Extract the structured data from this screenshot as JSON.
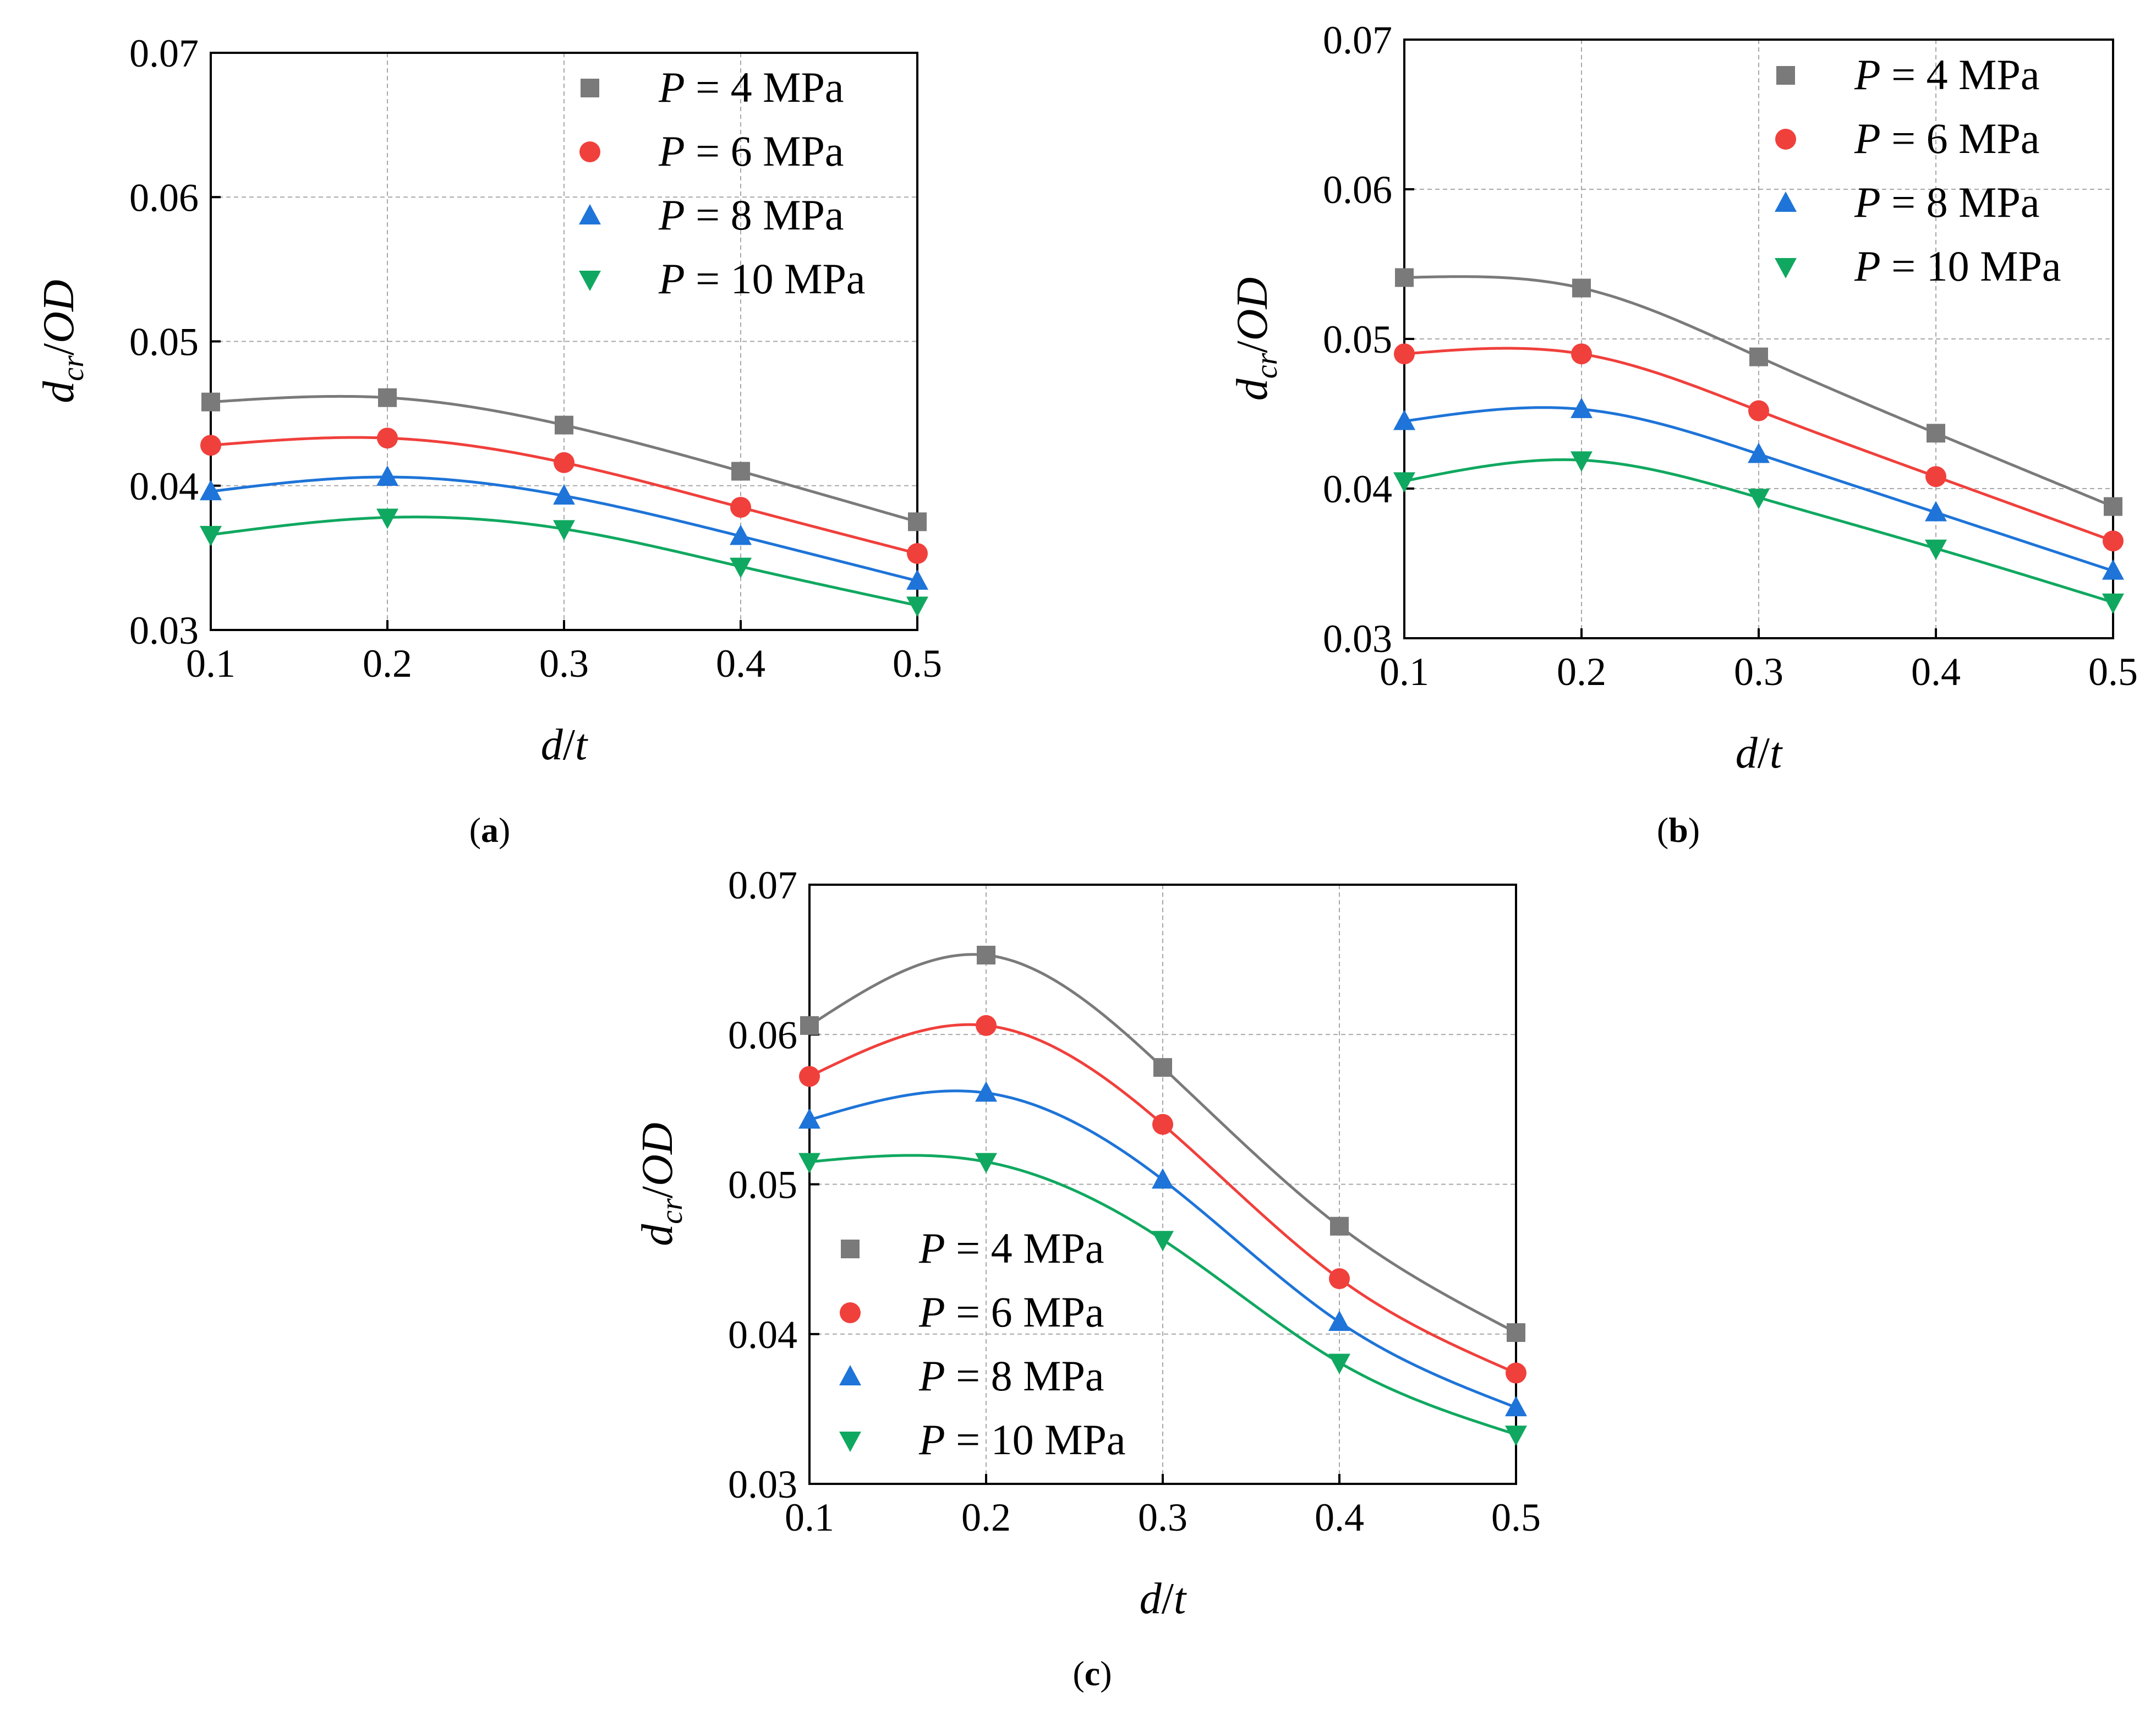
{
  "chart_data": [
    {
      "type": "line",
      "panel_label": "(a)",
      "xlabel": "d/t",
      "ylabel": "d_cr/OD",
      "xlim": [
        0.1,
        0.5
      ],
      "ylim": [
        0.03,
        0.07
      ],
      "xticks": [
        "0.1",
        "0.2",
        "0.3",
        "0.4",
        "0.5"
      ],
      "yticks": [
        "0.03",
        "0.04",
        "0.05",
        "0.06",
        "0.07"
      ],
      "grid": true,
      "legend_position": "top-right",
      "x": [
        0.1,
        0.2,
        0.3,
        0.4,
        0.5
      ],
      "series": [
        {
          "name": "P = 4 MPa",
          "var": "P",
          "rest": " = 4 MPa",
          "marker": "square",
          "color": "#7a7a7a",
          "values": [
            0.0458,
            0.0461,
            0.0442,
            0.041,
            0.0375
          ]
        },
        {
          "name": "P = 6 MPa",
          "var": "P",
          "rest": " = 6 MPa",
          "marker": "circle",
          "color": "#f0403c",
          "values": [
            0.0428,
            0.0433,
            0.0416,
            0.0385,
            0.0353
          ]
        },
        {
          "name": "P = 8 MPa",
          "var": "P",
          "rest": " = 8 MPa",
          "marker": "triangle-up",
          "color": "#1e74d8",
          "values": [
            0.0396,
            0.0406,
            0.0393,
            0.0365,
            0.0334
          ]
        },
        {
          "name": "P = 10 MPa",
          "var": "P",
          "rest": " = 10 MPa",
          "marker": "triangle-down",
          "color": "#10a860",
          "values": [
            0.0366,
            0.0378,
            0.037,
            0.0344,
            0.0317
          ]
        }
      ]
    },
    {
      "type": "line",
      "panel_label": "(b)",
      "xlabel": "d/t",
      "ylabel": "d_cr/OD",
      "xlim": [
        0.1,
        0.5
      ],
      "ylim": [
        0.03,
        0.07
      ],
      "xticks": [
        "0.1",
        "0.2",
        "0.3",
        "0.4",
        "0.5"
      ],
      "yticks": [
        "0.03",
        "0.04",
        "0.05",
        "0.06",
        "0.07"
      ],
      "grid": true,
      "legend_position": "top-right",
      "x": [
        0.1,
        0.2,
        0.3,
        0.4,
        0.5
      ],
      "series": [
        {
          "name": "P = 4 MPa",
          "var": "P",
          "rest": " = 4 MPa",
          "marker": "square",
          "color": "#7a7a7a",
          "values": [
            0.0541,
            0.0534,
            0.0488,
            0.0437,
            0.0388
          ]
        },
        {
          "name": "P = 6 MPa",
          "var": "P",
          "rest": " = 6 MPa",
          "marker": "circle",
          "color": "#f0403c",
          "values": [
            0.049,
            0.049,
            0.0452,
            0.0408,
            0.0365
          ]
        },
        {
          "name": "P = 8 MPa",
          "var": "P",
          "rest": " = 8 MPa",
          "marker": "triangle-up",
          "color": "#1e74d8",
          "values": [
            0.0445,
            0.0453,
            0.0423,
            0.0384,
            0.0345
          ]
        },
        {
          "name": "P = 10 MPa",
          "var": "P",
          "rest": " = 10 MPa",
          "marker": "triangle-down",
          "color": "#10a860",
          "values": [
            0.0405,
            0.0419,
            0.0394,
            0.036,
            0.0324
          ]
        }
      ]
    },
    {
      "type": "line",
      "panel_label": "(c)",
      "xlabel": "d/t",
      "ylabel": "d_cr/OD",
      "xlim": [
        0.1,
        0.5
      ],
      "ylim": [
        0.03,
        0.07
      ],
      "xticks": [
        "0.1",
        "0.2",
        "0.3",
        "0.4",
        "0.5"
      ],
      "yticks": [
        "0.03",
        "0.04",
        "0.05",
        "0.06",
        "0.07"
      ],
      "grid": true,
      "legend_position": "bottom-left",
      "x": [
        0.1,
        0.2,
        0.3,
        0.4,
        0.5
      ],
      "series": [
        {
          "name": "P = 4 MPa",
          "var": "P",
          "rest": " = 4 MPa",
          "marker": "square",
          "color": "#7a7a7a",
          "values": [
            0.0606,
            0.0653,
            0.0578,
            0.0472,
            0.0401
          ]
        },
        {
          "name": "P = 6 MPa",
          "var": "P",
          "rest": " = 6 MPa",
          "marker": "circle",
          "color": "#f0403c",
          "values": [
            0.0572,
            0.0606,
            0.054,
            0.0437,
            0.0374
          ]
        },
        {
          "name": "P = 8 MPa",
          "var": "P",
          "rest": " = 8 MPa",
          "marker": "triangle-up",
          "color": "#1e74d8",
          "values": [
            0.0543,
            0.0561,
            0.0503,
            0.0408,
            0.0351
          ]
        },
        {
          "name": "P = 10 MPa",
          "var": "P",
          "rest": " = 10 MPa",
          "marker": "triangle-down",
          "color": "#10a860",
          "values": [
            0.0515,
            0.0515,
            0.0463,
            0.0381,
            0.0333
          ]
        }
      ]
    }
  ]
}
